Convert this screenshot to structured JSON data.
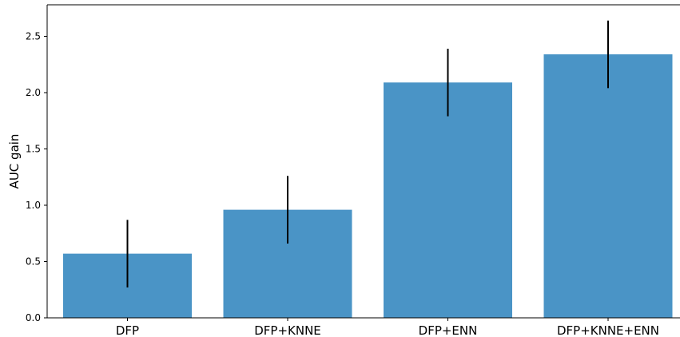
{
  "chart_data": {
    "type": "bar",
    "title": "",
    "xlabel": "",
    "ylabel": "AUC gain",
    "categories": [
      "DFP",
      "DFP+KNNE",
      "DFP+ENN",
      "DFP+KNNE+ENN"
    ],
    "values": [
      0.57,
      0.96,
      2.09,
      2.34
    ],
    "error": [
      0.3,
      0.3,
      0.3,
      0.3
    ],
    "ylim": [
      0,
      2.78
    ],
    "yticks": [
      0.0,
      0.5,
      1.0,
      1.5,
      2.0,
      2.5
    ],
    "ytick_labels": [
      "0.0",
      "0.5",
      "1.0",
      "1.5",
      "2.0",
      "2.5"
    ],
    "grid": false,
    "colors": {
      "bar": "#4a94c6",
      "error_bar": "#000000",
      "axis": "#000000"
    }
  }
}
